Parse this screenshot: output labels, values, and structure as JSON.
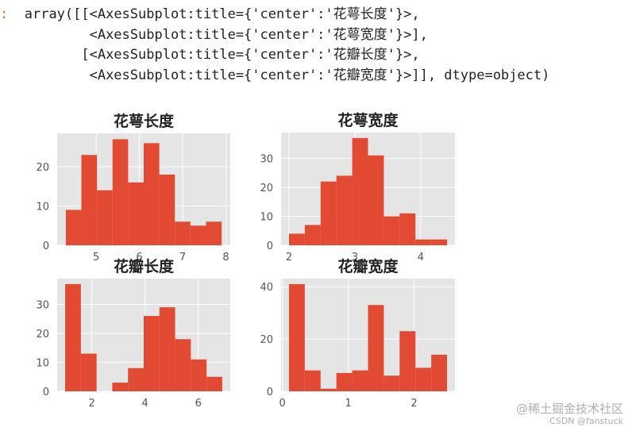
{
  "output": {
    "prompt": ":",
    "lines": [
      "array([[<AxesSubplot:title={'center':'花萼长度'}>,",
      "        <AxesSubplot:title={'center':'花萼宽度'}>],",
      "       [<AxesSubplot:title={'center':'花瓣长度'}>,",
      "        <AxesSubplot:title={'center':'花瓣宽度'}>]], dtype=object)"
    ]
  },
  "colors": {
    "bar": "#E24A33",
    "axes_bg": "#E5E5E5",
    "grid": "#FFFFFF",
    "text": "#555555"
  },
  "chart_data": [
    {
      "type": "bar",
      "title": "花萼长度",
      "bin_edges": [
        4.3,
        4.66,
        5.02,
        5.38,
        5.74,
        6.1,
        6.46,
        6.82,
        7.18,
        7.54,
        7.9
      ],
      "values": [
        9,
        23,
        14,
        27,
        16,
        26,
        18,
        6,
        5,
        6
      ],
      "xlim": [
        4.1,
        8.1
      ],
      "ylim": [
        0,
        28.5
      ],
      "xticks": [
        5,
        6,
        7,
        8
      ],
      "yticks": [
        0,
        10,
        20
      ],
      "xlabel": "",
      "ylabel": "",
      "grid": true
    },
    {
      "type": "bar",
      "title": "花萼宽度",
      "bin_edges": [
        2.0,
        2.24,
        2.48,
        2.72,
        2.96,
        3.2,
        3.44,
        3.68,
        3.92,
        4.16,
        4.4
      ],
      "values": [
        4,
        7,
        22,
        24,
        37,
        31,
        10,
        11,
        2,
        2
      ],
      "xlim": [
        1.88,
        4.52
      ],
      "ylim": [
        0,
        38.9
      ],
      "xticks": [
        2,
        3,
        4
      ],
      "yticks": [
        0,
        10,
        20,
        30
      ],
      "xlabel": "",
      "ylabel": "",
      "grid": true
    },
    {
      "type": "bar",
      "title": "花瓣长度",
      "bin_edges": [
        1.0,
        1.59,
        2.18,
        2.77,
        3.36,
        3.95,
        4.54,
        5.13,
        5.72,
        6.31,
        6.9
      ],
      "values": [
        37,
        13,
        0,
        3,
        8,
        26,
        29,
        18,
        11,
        5
      ],
      "xlim": [
        0.7,
        7.2
      ],
      "ylim": [
        0,
        38.9
      ],
      "xticks": [
        2,
        4,
        6
      ],
      "yticks": [
        0,
        10,
        20,
        30
      ],
      "xlabel": "",
      "ylabel": "",
      "grid": true
    },
    {
      "type": "bar",
      "title": "花瓣宽度",
      "bin_edges": [
        0.1,
        0.34,
        0.58,
        0.82,
        1.06,
        1.3,
        1.54,
        1.78,
        2.02,
        2.26,
        2.5
      ],
      "values": [
        41,
        8,
        1,
        7,
        8,
        33,
        6,
        23,
        9,
        14
      ],
      "xlim": [
        -0.02,
        2.62
      ],
      "ylim": [
        0,
        43.1
      ],
      "xticks": [
        0,
        1,
        2
      ],
      "yticks": [
        0,
        20,
        40
      ],
      "xlabel": "",
      "ylabel": "",
      "grid": true
    }
  ],
  "watermark": {
    "line1": "@稀土掘金技术社区",
    "line2": "CSDN @fanstuck"
  }
}
